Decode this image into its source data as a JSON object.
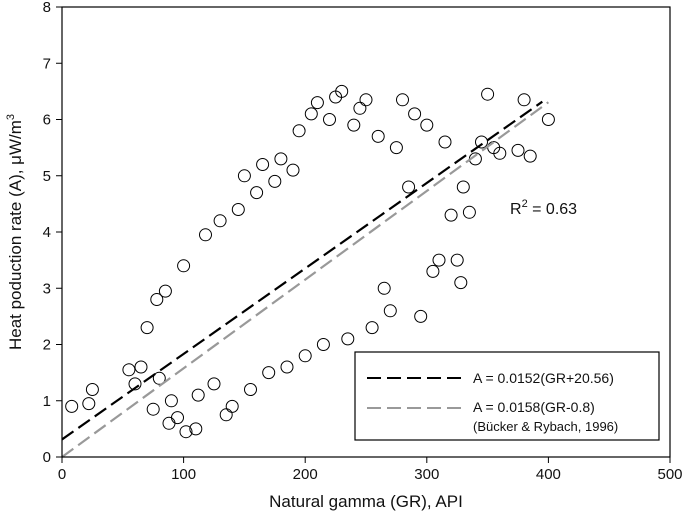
{
  "chart_data": {
    "type": "scatter",
    "xlabel": "Natural gamma (GR), API",
    "ylabel_main": "Heat poduction rate (A), μW/m",
    "ylabel_sup": "3",
    "xlim": [
      0,
      500
    ],
    "ylim": [
      0,
      8
    ],
    "x_ticks": [
      0,
      100,
      200,
      300,
      400,
      500
    ],
    "y_ticks": [
      0,
      1,
      2,
      3,
      4,
      5,
      6,
      7,
      8
    ],
    "grid": false,
    "r2_main": "R",
    "r2_sup": "2",
    "r2_value": " = 0.63",
    "series": [
      {
        "type": "scatter",
        "marker": "open-circle",
        "color": "#000000",
        "points": [
          [
            8,
            0.9
          ],
          [
            22,
            0.95
          ],
          [
            25,
            1.2
          ],
          [
            55,
            1.55
          ],
          [
            60,
            1.3
          ],
          [
            65,
            1.6
          ],
          [
            70,
            2.3
          ],
          [
            75,
            0.85
          ],
          [
            78,
            2.8
          ],
          [
            80,
            1.4
          ],
          [
            85,
            2.95
          ],
          [
            88,
            0.6
          ],
          [
            90,
            1.0
          ],
          [
            95,
            0.7
          ],
          [
            100,
            3.4
          ],
          [
            102,
            0.45
          ],
          [
            110,
            0.5
          ],
          [
            112,
            1.1
          ],
          [
            118,
            3.95
          ],
          [
            125,
            1.3
          ],
          [
            130,
            4.2
          ],
          [
            135,
            0.75
          ],
          [
            140,
            0.9
          ],
          [
            145,
            4.4
          ],
          [
            150,
            5.0
          ],
          [
            155,
            1.2
          ],
          [
            160,
            4.7
          ],
          [
            165,
            5.2
          ],
          [
            170,
            1.5
          ],
          [
            175,
            4.9
          ],
          [
            180,
            5.3
          ],
          [
            185,
            1.6
          ],
          [
            190,
            5.1
          ],
          [
            195,
            5.8
          ],
          [
            200,
            1.8
          ],
          [
            205,
            6.1
          ],
          [
            210,
            6.3
          ],
          [
            215,
            2.0
          ],
          [
            220,
            6.0
          ],
          [
            225,
            6.4
          ],
          [
            230,
            6.5
          ],
          [
            235,
            2.1
          ],
          [
            240,
            5.9
          ],
          [
            245,
            6.2
          ],
          [
            250,
            6.35
          ],
          [
            255,
            2.3
          ],
          [
            260,
            5.7
          ],
          [
            265,
            3.0
          ],
          [
            270,
            2.6
          ],
          [
            275,
            5.5
          ],
          [
            280,
            6.35
          ],
          [
            285,
            4.8
          ],
          [
            290,
            6.1
          ],
          [
            295,
            2.5
          ],
          [
            300,
            5.9
          ],
          [
            305,
            3.3
          ],
          [
            310,
            3.5
          ],
          [
            315,
            5.6
          ],
          [
            320,
            4.3
          ],
          [
            325,
            3.5
          ],
          [
            328,
            3.1
          ],
          [
            330,
            4.8
          ],
          [
            335,
            4.35
          ],
          [
            340,
            5.3
          ],
          [
            345,
            5.6
          ],
          [
            350,
            6.45
          ],
          [
            355,
            5.5
          ],
          [
            360,
            5.4
          ],
          [
            375,
            5.45
          ],
          [
            380,
            6.35
          ],
          [
            385,
            5.35
          ],
          [
            400,
            6.0
          ]
        ]
      }
    ],
    "lines": [
      {
        "name": "A = 0.0152(GR+20.56)",
        "slope": 0.0152,
        "offset": 20.56,
        "x_range": [
          0,
          395
        ],
        "color": "#000000",
        "dash": "dashed"
      },
      {
        "name": "A = 0.0158(GR-0.8)",
        "note": "(Bücker & Rybach, 1996)",
        "slope": 0.0158,
        "offset": -0.8,
        "x_range": [
          0,
          400
        ],
        "color": "#999999",
        "dash": "dashed"
      }
    ],
    "legend_position": "bottom-right"
  }
}
